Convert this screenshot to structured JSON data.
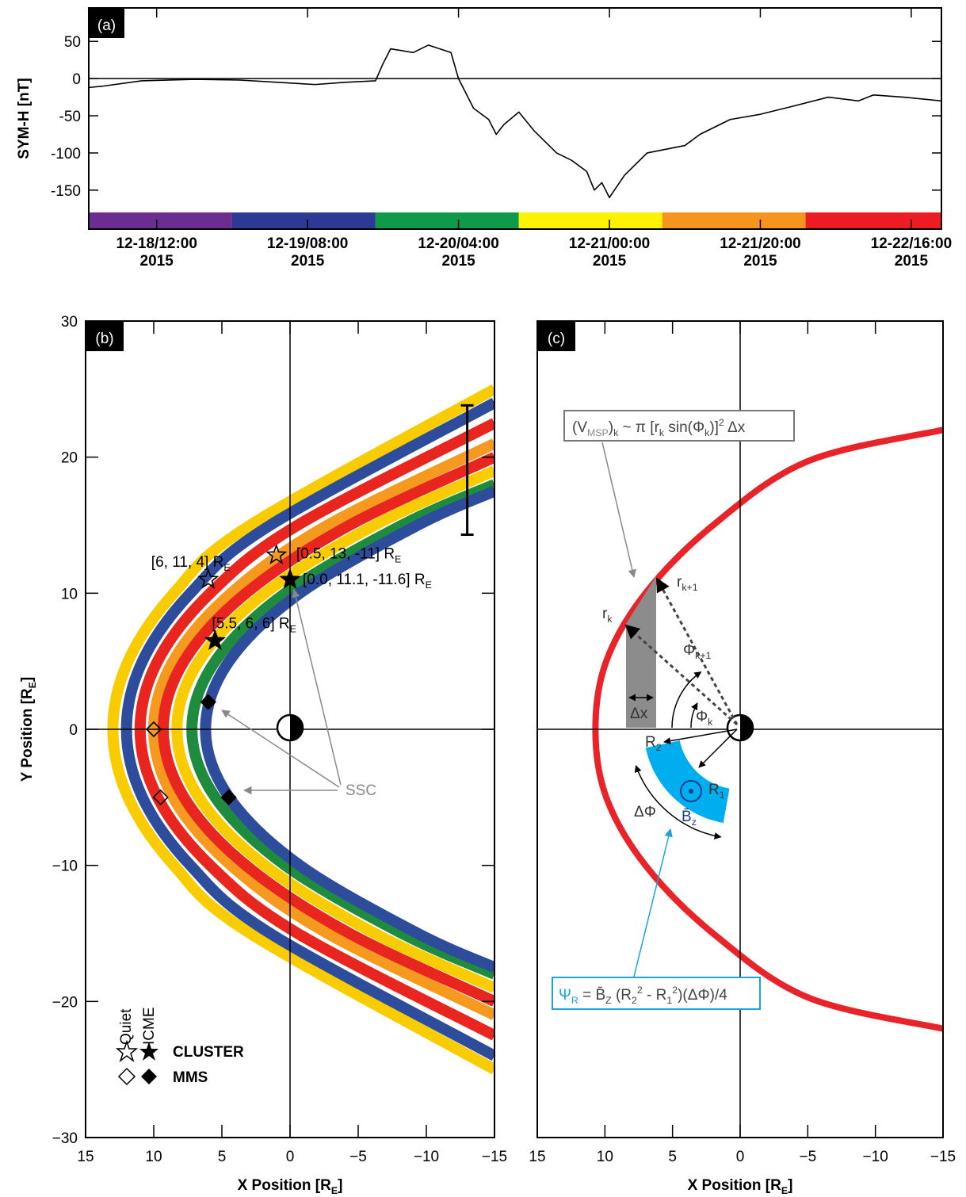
{
  "chart_data": [
    {
      "type": "line",
      "panel_label": "(a)",
      "ylabel": "SYM-H [nT]",
      "color": "#000000",
      "x": [
        "2015-12-18T03:00",
        "2015-12-18T05:00",
        "2015-12-18T10:00",
        "2015-12-18T17:00",
        "2015-12-18T23:00",
        "2015-12-19T04:00",
        "2015-12-19T09:00",
        "2015-12-19T13:00",
        "2015-12-19T17:00",
        "2015-12-19T18:00",
        "2015-12-19T19:00",
        "2015-12-19T22:00",
        "2015-12-20T00:00",
        "2015-12-20T03:00",
        "2015-12-20T04:00",
        "2015-12-20T06:00",
        "2015-12-20T08:00",
        "2015-12-20T09:00",
        "2015-12-20T10:00",
        "2015-12-20T12:00",
        "2015-12-20T14:00",
        "2015-12-20T17:00",
        "2015-12-20T19:00",
        "2015-12-20T21:00",
        "2015-12-20T22:00",
        "2015-12-20T23:00",
        "2015-12-21T00:00",
        "2015-12-21T02:00",
        "2015-12-21T05:00",
        "2015-12-21T10:00",
        "2015-12-21T12:00",
        "2015-12-21T16:00",
        "2015-12-21T20:00",
        "2015-12-22T00:00",
        "2015-12-22T05:00",
        "2015-12-22T09:00",
        "2015-12-22T11:00",
        "2015-12-22T15:00",
        "2015-12-22T20:00"
      ],
      "values": [
        -12,
        -10,
        -3,
        -1,
        -2,
        -5,
        -8,
        -5,
        -3,
        20,
        40,
        35,
        45,
        35,
        0,
        -40,
        -55,
        -75,
        -62,
        -45,
        -70,
        -100,
        -110,
        -125,
        -150,
        -140,
        -160,
        -130,
        -100,
        -90,
        -75,
        -55,
        -48,
        -38,
        -25,
        -30,
        -22,
        -25,
        -30
      ],
      "xlim": [
        "2015-12-18T03:00",
        "2015-12-22T20:00"
      ],
      "xticks": [
        {
          "value": "2015-12-18T12:00",
          "label": "12-18/12:00\n2015"
        },
        {
          "value": "2015-12-19T08:00",
          "label": "12-19/08:00\n2015"
        },
        {
          "value": "2015-12-20T04:00",
          "label": "12-20/04:00\n2015"
        },
        {
          "value": "2015-12-21T00:00",
          "label": "12-21/00:00\n2015"
        },
        {
          "value": "2015-12-21T20:00",
          "label": "12-21/20:00\n2015"
        },
        {
          "value": "2015-12-22T16:00",
          "label": "12-22/16:00\n2015"
        }
      ],
      "ylim": [
        -180,
        95
      ],
      "yticks": [
        -150,
        -100,
        -50,
        0,
        50
      ],
      "reference_line": 0,
      "bands": [
        {
          "color": "#6b2d8f",
          "start": "2015-12-18T03:00",
          "end": "2015-12-18T22:00"
        },
        {
          "color": "#2b3a95",
          "start": "2015-12-18T22:00",
          "end": "2015-12-19T17:00"
        },
        {
          "color": "#0e9a48",
          "start": "2015-12-19T17:00",
          "end": "2015-12-20T12:00"
        },
        {
          "color": "#fff200",
          "start": "2015-12-20T12:00",
          "end": "2015-12-21T07:00"
        },
        {
          "color": "#f7941d",
          "start": "2015-12-21T07:00",
          "end": "2015-12-22T02:00"
        },
        {
          "color": "#ed1c24",
          "start": "2015-12-22T02:00",
          "end": "2015-12-22T20:00"
        }
      ]
    },
    {
      "type": "curves",
      "panel_label": "(b)",
      "xlabel": [
        {
          "t": "X Position [R"
        },
        {
          "t": "E",
          "sub": true
        },
        {
          "t": "]"
        }
      ],
      "ylabel": [
        {
          "t": "Y Position [R"
        },
        {
          "t": "E",
          "sub": true
        },
        {
          "t": "]"
        }
      ],
      "xlim": [
        15,
        -15
      ],
      "ylim": [
        -30,
        30
      ],
      "xticks": [
        15,
        10,
        5,
        0,
        {
          "value": -5,
          "label": "−5"
        },
        {
          "value": -10,
          "label": "−10"
        },
        {
          "value": -15,
          "label": "−15"
        }
      ],
      "yticks": [
        {
          "value": -30,
          "label": "−30"
        },
        {
          "value": -20,
          "label": "−20"
        },
        {
          "value": -10,
          "label": "−10"
        },
        0,
        10,
        20,
        30
      ],
      "reference_lines": {
        "x": 0,
        "y": 0
      },
      "line_width": 14,
      "series": [
        {
          "color": "#f9cc00",
          "y": [
            -25,
            -15,
            -10,
            -5,
            0,
            5,
            10,
            15,
            25
          ],
          "x": [
            -15,
            2.92,
            8.52,
            11.88,
            13,
            11.88,
            8.52,
            2.92,
            -15
          ]
        },
        {
          "color": "#2d4c9c",
          "y": [
            -24,
            -15,
            -10,
            -5,
            0,
            5,
            10,
            15,
            24
          ],
          "x": [
            -15,
            1.45,
            7.31,
            10.83,
            12,
            10.83,
            7.31,
            1.45,
            -15
          ]
        },
        {
          "color": "#e8251f",
          "y": [
            -22.5,
            -15,
            -10,
            -5,
            0,
            5,
            10,
            15,
            22.5
          ],
          "x": [
            -15,
            -0.56,
            5.86,
            9.72,
            11,
            9.72,
            5.86,
            -0.56,
            -15
          ]
        },
        {
          "color": "#f59a1e",
          "y": [
            -21,
            -15,
            -10,
            -5,
            0,
            5,
            10,
            15,
            21
          ],
          "x": [
            -15,
            -2.76,
            4.33,
            8.58,
            10,
            8.58,
            4.33,
            -2.76,
            -15
          ]
        },
        {
          "color": "#e8251f",
          "y": [
            -20,
            -15,
            -10,
            -5,
            0,
            5,
            10,
            15,
            20
          ],
          "x": [
            -15,
            -4.37,
            3.23,
            7.78,
            9.3,
            7.78,
            3.23,
            -4.37,
            -15
          ]
        },
        {
          "color": "#f9cc00",
          "y": [
            -19,
            -15,
            -10,
            -5,
            0,
            5,
            10,
            15,
            19
          ],
          "x": [
            -15,
            -6.22,
            1.85,
            6.69,
            8.3,
            6.69,
            1.85,
            -6.22,
            -15
          ]
        },
        {
          "color": "#1e8b3f",
          "y": [
            -18,
            -15,
            -10,
            -5,
            0,
            5,
            10,
            15,
            18
          ],
          "x": [
            -15,
            -8.21,
            0.35,
            5.49,
            7.2,
            5.49,
            0.35,
            -8.21,
            -15
          ]
        },
        {
          "color": "#2d4c9c",
          "y": [
            -17.5,
            -15,
            -10,
            -5,
            0,
            5,
            10,
            15,
            17.5
          ],
          "x": [
            -15,
            -9.37,
            -0.72,
            4.47,
            6.2,
            4.47,
            -0.72,
            -9.37,
            -15
          ]
        }
      ],
      "error_bar": {
        "x": -13,
        "low": 14.3,
        "high": 23.8
      },
      "points": [
        {
          "x": 6,
          "y": 11,
          "marker": "star",
          "filled": false,
          "label": [
            {
              "t": "[6, 11, 4] R"
            },
            {
              "t": "E",
              "sub": true
            }
          ]
        },
        {
          "x": 1,
          "y": 12.8,
          "marker": "star",
          "filled": false,
          "label": [
            {
              "t": "[0.5, 13, -11] R"
            },
            {
              "t": "E",
              "sub": true
            }
          ]
        },
        {
          "x": 0,
          "y": 11,
          "marker": "star",
          "filled": true,
          "label": [
            {
              "t": "[0.0, 11.1, -11.6] R"
            },
            {
              "t": "E",
              "sub": true
            }
          ]
        },
        {
          "x": 5.5,
          "y": 6.5,
          "marker": "star",
          "filled": true,
          "label": [
            {
              "t": "[5.5, 6, 6] R"
            },
            {
              "t": "E",
              "sub": true
            }
          ]
        },
        {
          "x": 6,
          "y": 2,
          "marker": "diamond",
          "filled": true
        },
        {
          "x": 10,
          "y": 0,
          "marker": "diamond",
          "filled": false
        },
        {
          "x": 9.5,
          "y": -5,
          "marker": "diamond",
          "filled": false
        },
        {
          "x": 4.5,
          "y": -5,
          "marker": "diamond",
          "filled": true
        }
      ],
      "annotation": "SSC",
      "legend": {
        "quiet": "Quiet",
        "icme": "ICME",
        "items": [
          "CLUSTER",
          "MMS"
        ]
      }
    },
    {
      "type": "curves",
      "panel_label": "(c)",
      "xlabel": [
        {
          "t": "X Position [R"
        },
        {
          "t": "E",
          "sub": true
        },
        {
          "t": "]"
        }
      ],
      "xlim": [
        15,
        -15
      ],
      "ylim": [
        -30,
        30
      ],
      "xticks": [
        15,
        10,
        5,
        0,
        {
          "value": -5,
          "label": "−5"
        },
        {
          "value": -10,
          "label": "−10"
        },
        {
          "value": -15,
          "label": "−15"
        }
      ],
      "reference_lines": {
        "x": 0,
        "y": 0
      },
      "line_width": 8,
      "series": [
        {
          "color": "#e8232a",
          "y": [
            -22,
            -19.7,
            -15,
            -10,
            -5,
            0,
            5,
            10,
            15,
            19.7,
            22
          ],
          "x": [
            -15,
            -5,
            2,
            7,
            9.9,
            10.7,
            9.9,
            7,
            2,
            -5,
            -15
          ]
        }
      ],
      "annotations": {
        "volume": [
          {
            "t": "(V"
          },
          {
            "t": "MSP",
            "sub": true,
            "color": "#888888"
          },
          {
            "t": ")"
          },
          {
            "t": "k",
            "sub": true
          },
          {
            "t": " ~ π [r"
          },
          {
            "t": "k",
            "sub": true
          },
          {
            "t": " sin(Φ"
          },
          {
            "t": "k",
            "sub": true
          },
          {
            "t": ")]"
          },
          {
            "t": "2",
            "sup": true
          },
          {
            "t": " Δx"
          }
        ],
        "r_k": [
          {
            "t": "r"
          },
          {
            "t": "k",
            "sub": true
          }
        ],
        "r_k1": [
          {
            "t": "r"
          },
          {
            "t": "k+1",
            "sub": true
          }
        ],
        "phi_k1": [
          {
            "t": "Φ"
          },
          {
            "t": "k+1",
            "sub": true
          }
        ],
        "phi_k": [
          {
            "t": "Φ"
          },
          {
            "t": "k",
            "sub": true
          }
        ],
        "dx": [
          {
            "t": "Δx"
          }
        ],
        "R2": [
          {
            "t": "R"
          },
          {
            "t": "2",
            "sub": true
          }
        ],
        "R1": [
          {
            "t": "R"
          },
          {
            "t": "1",
            "sub": true
          }
        ],
        "dphi": [
          {
            "t": "ΔΦ"
          }
        ],
        "Bz": [
          {
            "t": "B̄"
          },
          {
            "t": "z",
            "sub": true
          }
        ],
        "flux": [
          {
            "t": "Ψ",
            "color": "#1aa3dc"
          },
          {
            "t": "R",
            "sub": true,
            "color": "#1aa3dc"
          },
          {
            "t": " = B̄"
          },
          {
            "t": "Z",
            "sub": true
          },
          {
            "t": " (R"
          },
          {
            "t": "2",
            "sub": true
          },
          {
            "t": "2",
            "sup": true
          },
          {
            "t": " - R"
          },
          {
            "t": "1",
            "sub": true
          },
          {
            "t": "2",
            "sup": true
          },
          {
            "t": ")(ΔΦ)/4"
          }
        ]
      }
    }
  ]
}
